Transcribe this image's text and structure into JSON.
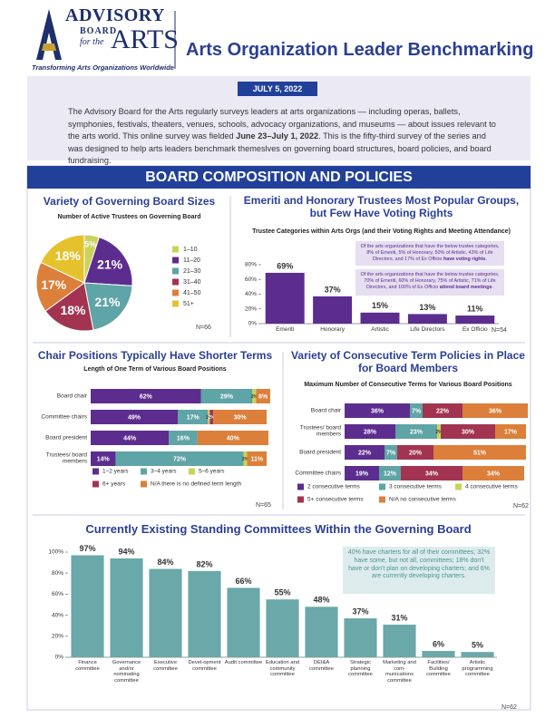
{
  "header": {
    "logo": [
      "ADVISORY",
      "BOARD",
      "for the",
      "ARTS"
    ],
    "tagline": "Transforming Arts Organizations Worldwide",
    "title": "Arts Organization Leader Benchmarking",
    "date": "JULY 5, 2022"
  },
  "intro": [
    "The Advisory Board for the Arts regularly surveys leaders at arts organizations — including  operas, ballets, symphonies, festivals, theaters, venues, schools, advocacy organizations, and museums — about issues relevant to the arts world. This online survey was fielded ",
    "June 23–July 1, 2022",
    ". This is the fifty-third survey of the series and was designed to help arts leaders benchmark themeslves on governing board structures, board policies, and board fundraising."
  ],
  "section": "BOARD COMPOSITION AND POLICIES",
  "chart_data": [
    {
      "type": "pie",
      "title": "Variety of Governing Board Sizes",
      "subtitle": "Number of Active Trustees on Governing Board",
      "categories": [
        "1–10",
        "11–20",
        "21–30",
        "31–40",
        "41–50",
        "51+"
      ],
      "values": [
        5,
        21,
        21,
        18,
        17,
        18
      ],
      "value_labels": [
        "5%",
        "21%",
        "21%",
        "18%",
        "17%",
        "18%"
      ],
      "colors": [
        "#c9d35a",
        "#5c2d8f",
        "#5fa4a6",
        "#a23451",
        "#dc7f3a",
        "#e6c12e"
      ],
      "note": "N=66"
    },
    {
      "type": "bar",
      "title": "Emeriti and Honorary Trustees Most Popular Groups, but Few Have Voting Rights",
      "subtitle": "Trustee Categories within Arts Orgs (and their Voting Rights and Meeting Attendance)",
      "categories": [
        "Emeriti",
        "Honorary",
        "Artistic",
        "Life Directors",
        "Ex Officio"
      ],
      "values": [
        69,
        37,
        15,
        13,
        11
      ],
      "value_labels": [
        "69%",
        "37%",
        "15%",
        "13%",
        "11%"
      ],
      "color": "#5c2d8f",
      "ylim": [
        0,
        80
      ],
      "yticks": [
        {
          "value": 0,
          "label": "0%"
        },
        {
          "value": 20,
          "label": "20%"
        },
        {
          "value": 40,
          "label": "40%"
        },
        {
          "value": 60,
          "label": "60%"
        },
        {
          "value": 80,
          "label": "80%"
        }
      ],
      "annotations": [
        [
          "Of the arts organizations that have the below trustee categories, 8% of Emeriti, 5% of Honorary, 50% of Artistic, 43% of Life Directors, and 17% of Ex Officio ",
          "have voting rights",
          "."
        ],
        [
          "Of the arts organizations that have the below trustee categories, 70% of Emeriti, 60% of Honorary, 75% of Artistic, 71% of Life Directors, and 100% of Ex Officio ",
          "attend board meetings",
          "."
        ]
      ],
      "note": "N=54"
    },
    {
      "type": "bar",
      "orientation": "horizontal",
      "stacked": true,
      "title": "Chair Positions Typically Have Shorter Terms",
      "subtitle": "Length of One Term of Various Board Positions",
      "categories": [
        "Board chair",
        "Committee chairs",
        "Board president",
        "Trustees/ board members"
      ],
      "xlim": [
        0,
        100
      ],
      "series": [
        {
          "name": "1–2 years",
          "color": "#5c2d8f",
          "values": [
            62,
            49,
            44,
            14
          ],
          "value_labels": [
            "62%",
            "49%",
            "44%",
            "14%"
          ]
        },
        {
          "name": "3–4 years",
          "color": "#5fa4a6",
          "values": [
            29,
            17,
            16,
            72
          ],
          "value_labels": [
            "29%",
            "17%",
            "16%",
            "72%"
          ]
        },
        {
          "name": "5–6 years",
          "color": "#c9d35a",
          "values": [
            2,
            1,
            0,
            2
          ],
          "value_labels": [
            "2%",
            "1%",
            null,
            "2%"
          ]
        },
        {
          "name": "6+ years",
          "color": "#a23451",
          "values": [
            0,
            2,
            0,
            0
          ],
          "value_labels": [
            null,
            "2%",
            null,
            null
          ]
        },
        {
          "name": "N/A there is no defined term length",
          "color": "#dc7f3a",
          "values": [
            8,
            30,
            40,
            11
          ],
          "value_labels": [
            "8%",
            "30%",
            "40%",
            "11%"
          ]
        }
      ],
      "note": "N=65"
    },
    {
      "type": "bar",
      "orientation": "horizontal",
      "stacked": true,
      "title": "Variety of Consecutive Term Policies in Place for Board Members",
      "subtitle": "Maximum Number of Consecutive Terms for Various Board Positions",
      "categories": [
        "Board chair",
        "Trustees/ board members",
        "Board president",
        "Committee chairs"
      ],
      "xlim": [
        0,
        100
      ],
      "series": [
        {
          "name": "2 consecutive terms",
          "color": "#5c2d8f",
          "values": [
            36,
            28,
            22,
            19
          ],
          "value_labels": [
            "36%",
            "28%",
            "22%",
            "19%"
          ]
        },
        {
          "name": "3 consecutive terms",
          "color": "#5fa4a6",
          "values": [
            7,
            23,
            7,
            12
          ],
          "value_labels": [
            "7%",
            "23%",
            "7%",
            "12%"
          ]
        },
        {
          "name": "4 consecutive terms",
          "color": "#c9d35a",
          "values": [
            0,
            2,
            0,
            0
          ],
          "value_labels": [
            null,
            "2%",
            null,
            null
          ]
        },
        {
          "name": "5+ consecutive terms",
          "color": "#a23451",
          "values": [
            22,
            30,
            20,
            34
          ],
          "value_labels": [
            "22%",
            "30%",
            "20%",
            "34%"
          ]
        },
        {
          "name": "N/A no consecutive terms",
          "color": "#dc7f3a",
          "values": [
            36,
            17,
            51,
            34
          ],
          "value_labels": [
            "36%",
            "17%",
            "51%",
            "34%"
          ]
        }
      ],
      "note": "N=62"
    },
    {
      "type": "bar",
      "title": "Currently Existing Standing Committees Within the Governing Board",
      "categories": [
        "Finance committee",
        "Governance and/or nominating committee",
        "Executive committee",
        "Devel-opment committee",
        "Audit committee",
        "Education and community committee",
        "DEI&A committee",
        "Strategic planning committee",
        "Marketing and com-munications committee",
        "Facilities/ Building committee",
        "Artistic programming committee"
      ],
      "values": [
        97,
        94,
        84,
        82,
        66,
        55,
        48,
        37,
        31,
        6,
        5
      ],
      "value_labels": [
        "97%",
        "94%",
        "84%",
        "82%",
        "66%",
        "55%",
        "48%",
        "37%",
        "31%",
        "6%",
        "5%"
      ],
      "color": "#6aa8a9",
      "ylim": [
        0,
        100
      ],
      "yticks": [
        {
          "value": 0,
          "label": "0%"
        },
        {
          "value": 20,
          "label": "20%"
        },
        {
          "value": 40,
          "label": "40%"
        },
        {
          "value": 60,
          "label": "60%"
        },
        {
          "value": 80,
          "label": "80%"
        },
        {
          "value": 100,
          "label": "100%"
        }
      ],
      "annotations": [
        [
          "40% have charters for all of their committees; 32% have some, but not all, committees; 18% don't have or don't plan on developing charters; and 6% are currently developing charters."
        ]
      ],
      "note": "N=62"
    }
  ]
}
